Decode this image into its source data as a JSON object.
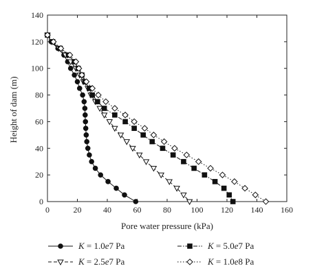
{
  "chart_data": {
    "type": "line",
    "xlabel": "Pore water pressure (kPa)",
    "ylabel": "Height of dam (m)",
    "xlim": [
      0,
      160
    ],
    "ylim": [
      0,
      140
    ],
    "xticks": [
      0,
      20,
      40,
      60,
      80,
      100,
      120,
      140,
      160
    ],
    "yticks": [
      0,
      20,
      40,
      60,
      80,
      100,
      120,
      140
    ],
    "grid": false,
    "legend_position": "bottom",
    "series": [
      {
        "name": "K = 1.0e7 Pa",
        "legend_parts": [
          "K",
          " = 1.0",
          "e",
          "7 Pa"
        ],
        "marker": "filled-circle",
        "line": "solid",
        "color": "#111111",
        "points": [
          [
            0,
            125
          ],
          [
            2.5,
            120
          ],
          [
            7,
            115
          ],
          [
            11,
            110
          ],
          [
            13.5,
            105
          ],
          [
            15.5,
            100
          ],
          [
            18,
            95
          ],
          [
            20,
            90
          ],
          [
            21.5,
            85
          ],
          [
            23.5,
            80
          ],
          [
            24.5,
            75
          ],
          [
            25,
            70
          ],
          [
            25.2,
            65
          ],
          [
            25.4,
            60
          ],
          [
            25.6,
            55
          ],
          [
            25.9,
            50
          ],
          [
            26.3,
            45
          ],
          [
            27,
            40
          ],
          [
            28,
            35
          ],
          [
            29.5,
            30
          ],
          [
            32,
            25
          ],
          [
            35.5,
            20
          ],
          [
            40.5,
            15
          ],
          [
            46,
            10
          ],
          [
            51.5,
            5
          ],
          [
            59,
            0
          ]
        ]
      },
      {
        "name": "K = 2.5e7 Pa",
        "legend_parts": [
          "K",
          " = 2.5",
          "e",
          "7 Pa"
        ],
        "marker": "open-triangle",
        "line": "dashed",
        "color": "#111111",
        "points": [
          [
            0,
            125
          ],
          [
            3,
            120
          ],
          [
            7.5,
            115
          ],
          [
            12,
            110
          ],
          [
            15.5,
            105
          ],
          [
            19,
            100
          ],
          [
            21.5,
            95
          ],
          [
            24,
            90
          ],
          [
            27,
            85
          ],
          [
            29,
            80
          ],
          [
            32,
            75
          ],
          [
            35,
            70
          ],
          [
            38,
            65
          ],
          [
            41.5,
            60
          ],
          [
            45,
            55
          ],
          [
            49,
            50
          ],
          [
            53,
            45
          ],
          [
            57,
            40
          ],
          [
            61.5,
            35
          ],
          [
            66,
            30
          ],
          [
            71,
            25
          ],
          [
            76,
            20
          ],
          [
            81.5,
            15
          ],
          [
            86.5,
            10
          ],
          [
            91,
            5
          ],
          [
            95,
            0
          ]
        ]
      },
      {
        "name": "K = 5.0e7 Pa",
        "legend_parts": [
          "K",
          " = 5.0",
          "e",
          "7 Pa"
        ],
        "marker": "filled-square",
        "line": "dash-dot",
        "color": "#111111",
        "points": [
          [
            0,
            125
          ],
          [
            3.5,
            120
          ],
          [
            8.5,
            115
          ],
          [
            14,
            110
          ],
          [
            18,
            105
          ],
          [
            20.5,
            100
          ],
          [
            23,
            95
          ],
          [
            25,
            90
          ],
          [
            28,
            85
          ],
          [
            30,
            80
          ],
          [
            33.5,
            75
          ],
          [
            38,
            70
          ],
          [
            45,
            65
          ],
          [
            52,
            60
          ],
          [
            58,
            55
          ],
          [
            64,
            50
          ],
          [
            70,
            45
          ],
          [
            77,
            40
          ],
          [
            84,
            35
          ],
          [
            91,
            30
          ],
          [
            98,
            25
          ],
          [
            105,
            20
          ],
          [
            112,
            15
          ],
          [
            118,
            10
          ],
          [
            121.5,
            5
          ],
          [
            124,
            0
          ]
        ]
      },
      {
        "name": "K = 1.0e8 Pa",
        "legend_parts": [
          "K",
          " = 1.0",
          "e",
          "8 Pa"
        ],
        "marker": "open-diamond",
        "line": "dotted",
        "color": "#111111",
        "points": [
          [
            0,
            125
          ],
          [
            4,
            120
          ],
          [
            9,
            115
          ],
          [
            15,
            110
          ],
          [
            19,
            105
          ],
          [
            21,
            100
          ],
          [
            23,
            95
          ],
          [
            26,
            90
          ],
          [
            30,
            85
          ],
          [
            34,
            80
          ],
          [
            39,
            75
          ],
          [
            45,
            70
          ],
          [
            52,
            65
          ],
          [
            58,
            60
          ],
          [
            65,
            55
          ],
          [
            71,
            50
          ],
          [
            78,
            45
          ],
          [
            85,
            40
          ],
          [
            93,
            35
          ],
          [
            101,
            30
          ],
          [
            109,
            25
          ],
          [
            117,
            20
          ],
          [
            125,
            15
          ],
          [
            132,
            10
          ],
          [
            139,
            5
          ],
          [
            146,
            0
          ]
        ]
      }
    ]
  }
}
